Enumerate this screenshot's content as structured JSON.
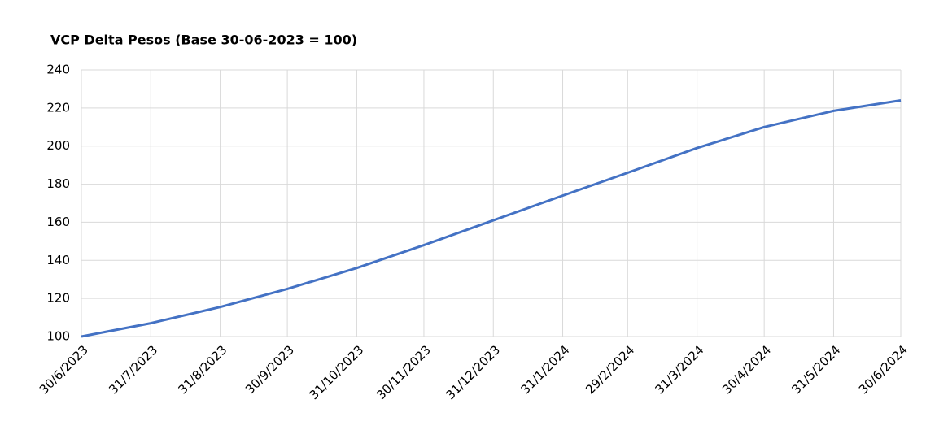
{
  "chart_data": {
    "type": "line",
    "title": "VCP Delta Pesos (Base 30-06-2023 = 100)",
    "x": [
      "30/6/2023",
      "31/7/2023",
      "31/8/2023",
      "30/9/2023",
      "31/10/2023",
      "30/11/2023",
      "31/12/2023",
      "31/1/2024",
      "29/2/2024",
      "31/3/2024",
      "30/4/2024",
      "31/5/2024",
      "30/6/2024"
    ],
    "series": [
      {
        "name": "VCP",
        "color": "#4472c4",
        "values": [
          100,
          107,
          115.5,
          125,
          136,
          148,
          161,
          174,
          186,
          199,
          210,
          218.5,
          224
        ]
      }
    ],
    "ylim": [
      100,
      240
    ],
    "yticks": [
      100,
      120,
      140,
      160,
      180,
      200,
      220,
      240
    ],
    "grid": true
  }
}
